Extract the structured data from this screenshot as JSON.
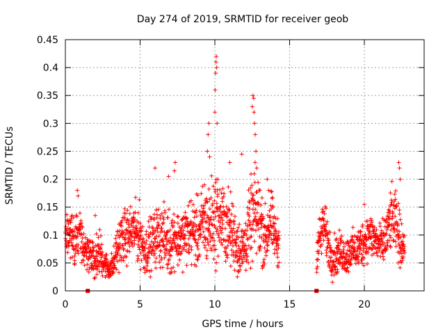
{
  "chart_data": {
    "type": "scatter",
    "title": "Day 274 of 2019, SRMTID for receiver geob",
    "xlabel": "GPS time / hours",
    "ylabel": "SRMTID / TECUs",
    "xlim": [
      0,
      24
    ],
    "ylim": [
      0,
      0.45
    ],
    "xticks": [
      0,
      5,
      10,
      15,
      20
    ],
    "yticks": [
      0,
      0.05,
      0.1,
      0.15,
      0.2,
      0.25,
      0.3,
      0.35,
      0.4,
      0.45
    ],
    "xtick_labels": [
      "0",
      "5",
      "10",
      "15",
      "20"
    ],
    "ytick_labels": [
      "0",
      "0.05",
      "0.1",
      "0.15",
      "0.2",
      "0.25",
      "0.3",
      "0.35",
      "0.4",
      "0.45"
    ],
    "grid": true,
    "marker": "+",
    "color": "#ff0000",
    "gap_markers": {
      "x": [
        1.5,
        16.8
      ],
      "y": [
        0,
        0
      ]
    },
    "envelope": {
      "x": [
        0,
        0.3,
        0.6,
        0.9,
        1.2,
        1.5,
        1.8,
        2.0,
        2.3,
        2.6,
        2.9,
        3.2,
        3.5,
        3.8,
        4.2,
        4.6,
        5.0,
        5.3,
        5.6,
        5.9,
        6.2,
        6.6,
        7.0,
        7.3,
        7.6,
        8.0,
        8.4,
        8.8,
        9.2,
        9.6,
        10.0,
        10.3,
        10.6,
        11.0,
        11.4,
        11.8,
        12.2,
        12.5,
        12.8,
        13.1,
        13.4,
        13.7,
        14.0,
        14.3,
        16.8,
        17.0,
        17.3,
        17.6,
        17.9,
        18.2,
        18.5,
        18.8,
        19.1,
        19.4,
        19.7,
        20.0,
        20.3,
        20.6,
        20.9,
        21.2,
        21.5,
        21.8,
        22.1,
        22.4,
        22.7
      ],
      "center": [
        0.09,
        0.1,
        0.085,
        0.11,
        0.07,
        0.075,
        0.065,
        0.06,
        0.07,
        0.05,
        0.04,
        0.045,
        0.08,
        0.095,
        0.1,
        0.11,
        0.1,
        0.07,
        0.08,
        0.09,
        0.1,
        0.095,
        0.085,
        0.1,
        0.09,
        0.1,
        0.11,
        0.1,
        0.12,
        0.12,
        0.13,
        0.13,
        0.12,
        0.11,
        0.09,
        0.07,
        0.1,
        0.13,
        0.14,
        0.12,
        0.09,
        0.13,
        0.1,
        0.08,
        0.07,
        0.09,
        0.12,
        0.08,
        0.06,
        0.065,
        0.07,
        0.06,
        0.075,
        0.07,
        0.08,
        0.09,
        0.1,
        0.095,
        0.085,
        0.08,
        0.1,
        0.13,
        0.12,
        0.09,
        0.08
      ],
      "spread": [
        0.03,
        0.03,
        0.035,
        0.04,
        0.03,
        0.03,
        0.03,
        0.025,
        0.03,
        0.02,
        0.015,
        0.02,
        0.03,
        0.035,
        0.035,
        0.035,
        0.04,
        0.03,
        0.035,
        0.035,
        0.04,
        0.04,
        0.045,
        0.04,
        0.035,
        0.04,
        0.045,
        0.045,
        0.05,
        0.055,
        0.06,
        0.05,
        0.05,
        0.05,
        0.04,
        0.035,
        0.045,
        0.06,
        0.06,
        0.05,
        0.04,
        0.045,
        0.03,
        0.03,
        0.025,
        0.035,
        0.03,
        0.03,
        0.03,
        0.025,
        0.025,
        0.025,
        0.025,
        0.025,
        0.03,
        0.03,
        0.03,
        0.03,
        0.025,
        0.03,
        0.035,
        0.04,
        0.04,
        0.035,
        0.025
      ]
    },
    "spikes": [
      {
        "x": 0.8,
        "y": 0.18
      },
      {
        "x": 0.85,
        "y": 0.17
      },
      {
        "x": 2.0,
        "y": 0.135
      },
      {
        "x": 6.0,
        "y": 0.22
      },
      {
        "x": 6.9,
        "y": 0.205
      },
      {
        "x": 7.3,
        "y": 0.215
      },
      {
        "x": 7.35,
        "y": 0.23
      },
      {
        "x": 9.3,
        "y": 0.19
      },
      {
        "x": 9.5,
        "y": 0.25
      },
      {
        "x": 9.55,
        "y": 0.28
      },
      {
        "x": 9.6,
        "y": 0.3
      },
      {
        "x": 9.65,
        "y": 0.24
      },
      {
        "x": 10.0,
        "y": 0.32
      },
      {
        "x": 10.02,
        "y": 0.36
      },
      {
        "x": 10.05,
        "y": 0.39
      },
      {
        "x": 10.08,
        "y": 0.41
      },
      {
        "x": 10.1,
        "y": 0.42
      },
      {
        "x": 10.12,
        "y": 0.4
      },
      {
        "x": 10.15,
        "y": 0.3
      },
      {
        "x": 10.2,
        "y": 0.2
      },
      {
        "x": 10.5,
        "y": 0.16
      },
      {
        "x": 11.0,
        "y": 0.23
      },
      {
        "x": 11.5,
        "y": 0.025
      },
      {
        "x": 11.8,
        "y": 0.245
      },
      {
        "x": 12.5,
        "y": 0.33
      },
      {
        "x": 12.55,
        "y": 0.35
      },
      {
        "x": 12.6,
        "y": 0.345
      },
      {
        "x": 12.62,
        "y": 0.32
      },
      {
        "x": 12.65,
        "y": 0.3
      },
      {
        "x": 12.7,
        "y": 0.28
      },
      {
        "x": 12.75,
        "y": 0.25
      },
      {
        "x": 12.8,
        "y": 0.22
      },
      {
        "x": 13.5,
        "y": 0.2
      },
      {
        "x": 13.6,
        "y": 0.18
      },
      {
        "x": 14.2,
        "y": 0.045
      },
      {
        "x": 22.3,
        "y": 0.23
      },
      {
        "x": 22.35,
        "y": 0.22
      },
      {
        "x": 22.4,
        "y": 0.2
      },
      {
        "x": 20.0,
        "y": 0.155
      }
    ]
  }
}
